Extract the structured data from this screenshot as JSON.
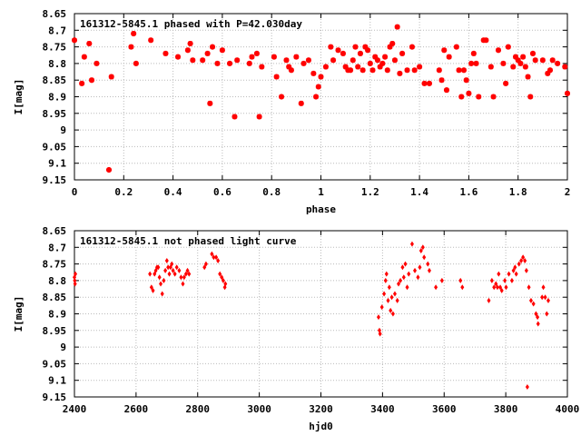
{
  "chart_data": [
    {
      "type": "scatter",
      "title": "161312-5845.1 phased with P=42.030day",
      "xlabel": "phase",
      "ylabel": "I[mag]",
      "xlim": [
        0,
        2
      ],
      "ylim": [
        9.15,
        8.65
      ],
      "y_inverted": true,
      "x_ticks": [
        "0",
        "0.2",
        "0.4",
        "0.6",
        "0.8",
        "1",
        "1.2",
        "1.4",
        "1.6",
        "1.8",
        "2"
      ],
      "y_ticks": [
        "8.65",
        "8.7",
        "8.75",
        "8.8",
        "8.85",
        "8.9",
        "8.95",
        "9",
        "9.05",
        "9.1",
        "9.15"
      ],
      "grid": true,
      "marker_color": "#ff0000",
      "marker": "star",
      "points": [
        [
          0.0,
          8.73
        ],
        [
          0.03,
          8.86
        ],
        [
          0.04,
          8.78
        ],
        [
          0.06,
          8.74
        ],
        [
          0.07,
          8.85
        ],
        [
          0.09,
          8.8
        ],
        [
          0.14,
          9.12
        ],
        [
          0.15,
          8.84
        ],
        [
          0.23,
          8.75
        ],
        [
          0.24,
          8.71
        ],
        [
          0.25,
          8.8
        ],
        [
          0.31,
          8.73
        ],
        [
          0.37,
          8.77
        ],
        [
          0.42,
          8.78
        ],
        [
          0.46,
          8.76
        ],
        [
          0.47,
          8.74
        ],
        [
          0.48,
          8.79
        ],
        [
          0.52,
          8.79
        ],
        [
          0.54,
          8.77
        ],
        [
          0.55,
          8.92
        ],
        [
          0.56,
          8.75
        ],
        [
          0.58,
          8.8
        ],
        [
          0.6,
          8.76
        ],
        [
          0.63,
          8.8
        ],
        [
          0.65,
          8.96
        ],
        [
          0.66,
          8.79
        ],
        [
          0.71,
          8.8
        ],
        [
          0.72,
          8.78
        ],
        [
          0.74,
          8.77
        ],
        [
          0.75,
          8.96
        ],
        [
          0.76,
          8.81
        ],
        [
          0.81,
          8.78
        ],
        [
          0.82,
          8.84
        ],
        [
          0.84,
          8.9
        ],
        [
          0.86,
          8.79
        ],
        [
          0.87,
          8.81
        ],
        [
          0.88,
          8.82
        ],
        [
          0.9,
          8.78
        ],
        [
          0.92,
          8.92
        ],
        [
          0.93,
          8.8
        ],
        [
          0.95,
          8.79
        ],
        [
          0.97,
          8.83
        ],
        [
          0.98,
          8.9
        ],
        [
          0.99,
          8.87
        ],
        [
          1.0,
          8.84
        ],
        [
          1.02,
          8.81
        ],
        [
          1.04,
          8.75
        ],
        [
          1.05,
          8.79
        ],
        [
          1.07,
          8.76
        ],
        [
          1.09,
          8.77
        ],
        [
          1.1,
          8.81
        ],
        [
          1.11,
          8.82
        ],
        [
          1.12,
          8.82
        ],
        [
          1.13,
          8.79
        ],
        [
          1.14,
          8.75
        ],
        [
          1.15,
          8.81
        ],
        [
          1.16,
          8.77
        ],
        [
          1.17,
          8.82
        ],
        [
          1.18,
          8.75
        ],
        [
          1.19,
          8.76
        ],
        [
          1.2,
          8.8
        ],
        [
          1.21,
          8.82
        ],
        [
          1.22,
          8.78
        ],
        [
          1.23,
          8.79
        ],
        [
          1.24,
          8.81
        ],
        [
          1.25,
          8.8
        ],
        [
          1.26,
          8.78
        ],
        [
          1.27,
          8.82
        ],
        [
          1.28,
          8.75
        ],
        [
          1.29,
          8.74
        ],
        [
          1.3,
          8.79
        ],
        [
          1.31,
          8.69
        ],
        [
          1.32,
          8.83
        ],
        [
          1.33,
          8.77
        ],
        [
          1.35,
          8.82
        ],
        [
          1.37,
          8.75
        ],
        [
          1.38,
          8.82
        ],
        [
          1.4,
          8.81
        ],
        [
          1.42,
          8.86
        ],
        [
          1.44,
          8.86
        ],
        [
          1.48,
          8.82
        ],
        [
          1.49,
          8.85
        ],
        [
          1.5,
          8.76
        ],
        [
          1.51,
          8.88
        ],
        [
          1.52,
          8.78
        ],
        [
          1.55,
          8.75
        ],
        [
          1.56,
          8.82
        ],
        [
          1.57,
          8.9
        ],
        [
          1.58,
          8.82
        ],
        [
          1.59,
          8.85
        ],
        [
          1.6,
          8.89
        ],
        [
          1.61,
          8.8
        ],
        [
          1.62,
          8.77
        ],
        [
          1.63,
          8.8
        ],
        [
          1.64,
          8.9
        ],
        [
          1.66,
          8.73
        ],
        [
          1.67,
          8.73
        ],
        [
          1.69,
          8.81
        ],
        [
          1.7,
          8.9
        ],
        [
          1.72,
          8.76
        ],
        [
          1.74,
          8.8
        ],
        [
          1.75,
          8.86
        ],
        [
          1.76,
          8.75
        ],
        [
          1.78,
          8.81
        ],
        [
          1.79,
          8.78
        ],
        [
          1.8,
          8.79
        ],
        [
          1.81,
          8.8
        ],
        [
          1.82,
          8.78
        ],
        [
          1.83,
          8.81
        ],
        [
          1.84,
          8.84
        ],
        [
          1.85,
          8.9
        ],
        [
          1.86,
          8.77
        ],
        [
          1.87,
          8.79
        ],
        [
          1.9,
          8.79
        ],
        [
          1.92,
          8.83
        ],
        [
          1.93,
          8.82
        ],
        [
          1.94,
          8.79
        ],
        [
          1.96,
          8.8
        ],
        [
          1.99,
          8.81
        ],
        [
          2.0,
          8.89
        ]
      ]
    },
    {
      "type": "scatter",
      "title": "161312-5845.1 not phased light curve",
      "xlabel": "hjd0",
      "ylabel": "I[mag]",
      "xlim": [
        2400,
        4000
      ],
      "ylim": [
        9.15,
        8.65
      ],
      "y_inverted": true,
      "x_ticks": [
        "2400",
        "2600",
        "2800",
        "3000",
        "3200",
        "3400",
        "3600",
        "3800",
        "4000"
      ],
      "y_ticks": [
        "8.65",
        "8.7",
        "8.75",
        "8.8",
        "8.85",
        "8.9",
        "8.95",
        "9",
        "9.05",
        "9.1",
        "9.15"
      ],
      "grid": true,
      "marker_color": "#ff0000",
      "marker": "diamond",
      "points": [
        [
          2400,
          8.79
        ],
        [
          2401,
          8.8
        ],
        [
          2402,
          8.81
        ],
        [
          2403,
          8.78
        ],
        [
          2645,
          8.78
        ],
        [
          2650,
          8.82
        ],
        [
          2655,
          8.83
        ],
        [
          2660,
          8.78
        ],
        [
          2664,
          8.77
        ],
        [
          2668,
          8.76
        ],
        [
          2672,
          8.76
        ],
        [
          2676,
          8.79
        ],
        [
          2680,
          8.81
        ],
        [
          2685,
          8.84
        ],
        [
          2690,
          8.8
        ],
        [
          2695,
          8.77
        ],
        [
          2700,
          8.74
        ],
        [
          2704,
          8.76
        ],
        [
          2708,
          8.78
        ],
        [
          2712,
          8.76
        ],
        [
          2716,
          8.75
        ],
        [
          2720,
          8.77
        ],
        [
          2726,
          8.78
        ],
        [
          2732,
          8.76
        ],
        [
          2740,
          8.77
        ],
        [
          2746,
          8.79
        ],
        [
          2752,
          8.81
        ],
        [
          2756,
          8.79
        ],
        [
          2762,
          8.78
        ],
        [
          2767,
          8.77
        ],
        [
          2772,
          8.78
        ],
        [
          2822,
          8.76
        ],
        [
          2827,
          8.75
        ],
        [
          2846,
          8.72
        ],
        [
          2852,
          8.73
        ],
        [
          2860,
          8.73
        ],
        [
          2866,
          8.74
        ],
        [
          2872,
          8.78
        ],
        [
          2878,
          8.79
        ],
        [
          2883,
          8.8
        ],
        [
          2888,
          8.82
        ],
        [
          2890,
          8.81
        ],
        [
          3387,
          8.91
        ],
        [
          3390,
          8.95
        ],
        [
          3392,
          8.96
        ],
        [
          3398,
          8.88
        ],
        [
          3405,
          8.84
        ],
        [
          3410,
          8.8
        ],
        [
          3413,
          8.78
        ],
        [
          3418,
          8.86
        ],
        [
          3422,
          8.82
        ],
        [
          3426,
          8.89
        ],
        [
          3430,
          8.85
        ],
        [
          3434,
          8.9
        ],
        [
          3440,
          8.84
        ],
        [
          3448,
          8.86
        ],
        [
          3452,
          8.81
        ],
        [
          3458,
          8.8
        ],
        [
          3465,
          8.76
        ],
        [
          3469,
          8.79
        ],
        [
          3474,
          8.75
        ],
        [
          3480,
          8.82
        ],
        [
          3485,
          8.78
        ],
        [
          3496,
          8.69
        ],
        [
          3505,
          8.77
        ],
        [
          3515,
          8.79
        ],
        [
          3521,
          8.76
        ],
        [
          3525,
          8.71
        ],
        [
          3531,
          8.7
        ],
        [
          3535,
          8.73
        ],
        [
          3547,
          8.75
        ],
        [
          3552,
          8.77
        ],
        [
          3573,
          8.82
        ],
        [
          3593,
          8.8
        ],
        [
          3653,
          8.8
        ],
        [
          3659,
          8.82
        ],
        [
          3745,
          8.86
        ],
        [
          3755,
          8.8
        ],
        [
          3762,
          8.82
        ],
        [
          3768,
          8.81
        ],
        [
          3773,
          8.82
        ],
        [
          3777,
          8.78
        ],
        [
          3782,
          8.82
        ],
        [
          3787,
          8.83
        ],
        [
          3797,
          8.8
        ],
        [
          3801,
          8.82
        ],
        [
          3810,
          8.78
        ],
        [
          3820,
          8.8
        ],
        [
          3825,
          8.77
        ],
        [
          3830,
          8.76
        ],
        [
          3834,
          8.78
        ],
        [
          3843,
          8.75
        ],
        [
          3850,
          8.74
        ],
        [
          3856,
          8.73
        ],
        [
          3862,
          8.74
        ],
        [
          3867,
          8.77
        ],
        [
          3870,
          9.12
        ],
        [
          3875,
          8.82
        ],
        [
          3882,
          8.86
        ],
        [
          3890,
          8.87
        ],
        [
          3898,
          8.9
        ],
        [
          3903,
          8.91
        ],
        [
          3905,
          8.93
        ],
        [
          3918,
          8.85
        ],
        [
          3922,
          8.82
        ],
        [
          3928,
          8.85
        ],
        [
          3933,
          8.9
        ],
        [
          3938,
          8.86
        ]
      ]
    }
  ]
}
